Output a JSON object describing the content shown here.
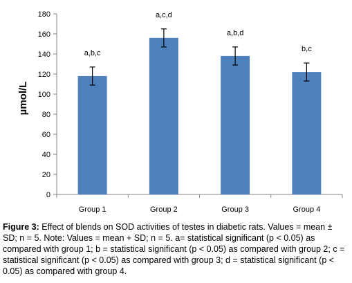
{
  "chart_data": {
    "type": "bar",
    "categories": [
      "Group 1",
      "Group 2",
      "Group 3",
      "Group 4"
    ],
    "values": [
      118,
      156,
      138,
      122
    ],
    "errors": [
      9,
      9,
      9,
      9
    ],
    "annotations": [
      "a,b,c",
      "a,c,d",
      "a,b,d",
      "b,c"
    ],
    "ylabel": "µmol/L",
    "xlabel": "",
    "ylim": [
      0,
      180
    ],
    "yticks": [
      0,
      20,
      40,
      60,
      80,
      100,
      120,
      140,
      160,
      180
    ],
    "grid": false,
    "bar_color": "#4F81BD"
  },
  "caption": {
    "label": "Figure 3:",
    "text": " Effect of blends on SOD activities of testes in diabetic rats. Values = mean ± SD; n = 5. Note: Values = mean + SD; n = 5. a= statistical significant (p < 0.05) as compared with group 1; b = statistical significant (p < 0.05) as compared with group 2; c = statistical significant (p < 0.05) as compared with group 3; d = statistical significant (p < 0.05) as compared with group 4."
  }
}
